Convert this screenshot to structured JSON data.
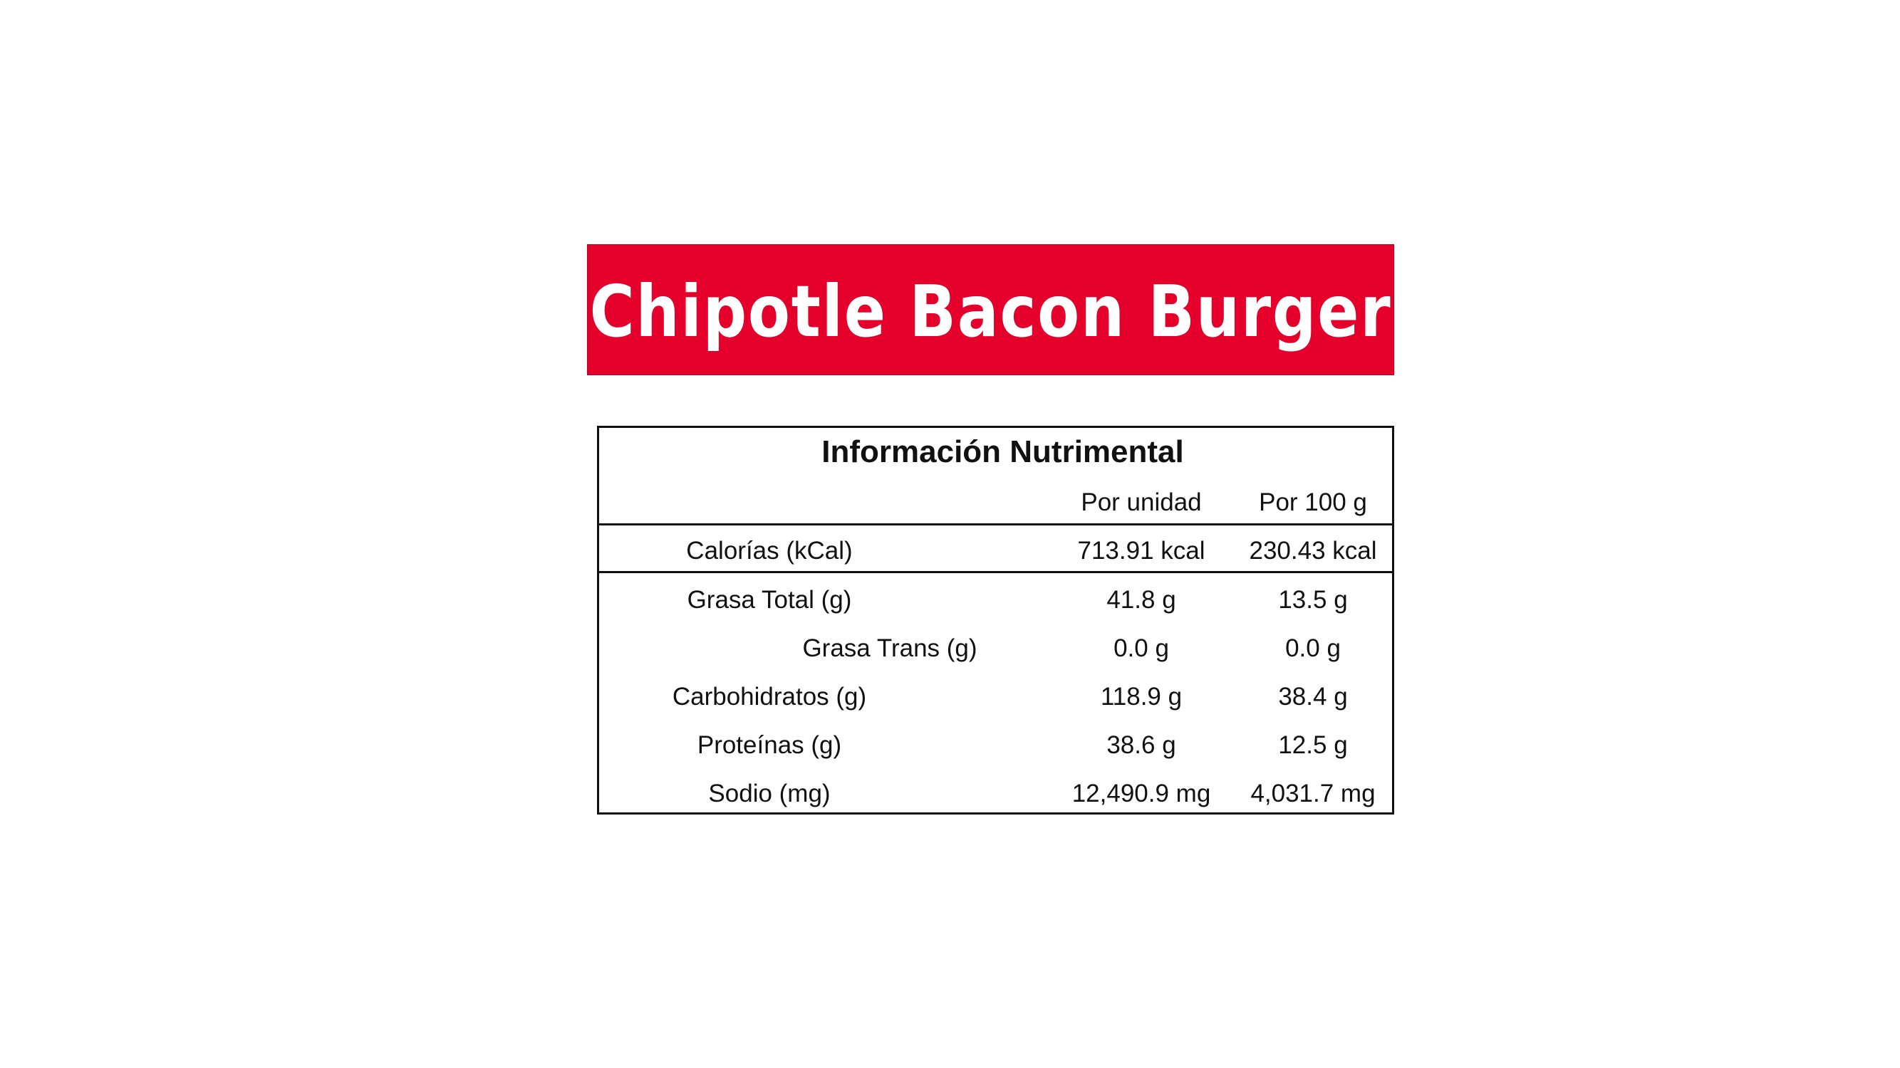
{
  "banner": {
    "title": "Chipotle Bacon Burger",
    "background_color": "#E4002B"
  },
  "table": {
    "title": "Información Nutrimental",
    "columns": [
      "",
      "Por unidad",
      "Por 100 g"
    ],
    "rows": [
      {
        "label": "Calorías (kCal)",
        "per_unit": "713.91 kcal",
        "per_100g": "230.43 kcal"
      },
      {
        "label": "Grasa Total (g)",
        "per_unit": "41.8 g",
        "per_100g": "13.5 g"
      },
      {
        "label": "Grasa Trans (g)",
        "per_unit": "0.0 g",
        "per_100g": "0.0 g"
      },
      {
        "label": "Carbohidratos (g)",
        "per_unit": "118.9 g",
        "per_100g": "38.4 g"
      },
      {
        "label": "Proteínas (g)",
        "per_unit": "38.6 g",
        "per_100g": "12.5 g"
      },
      {
        "label": "Sodio (mg)",
        "per_unit": "12,490.9 mg",
        "per_100g": "4,031.7 mg"
      }
    ]
  }
}
